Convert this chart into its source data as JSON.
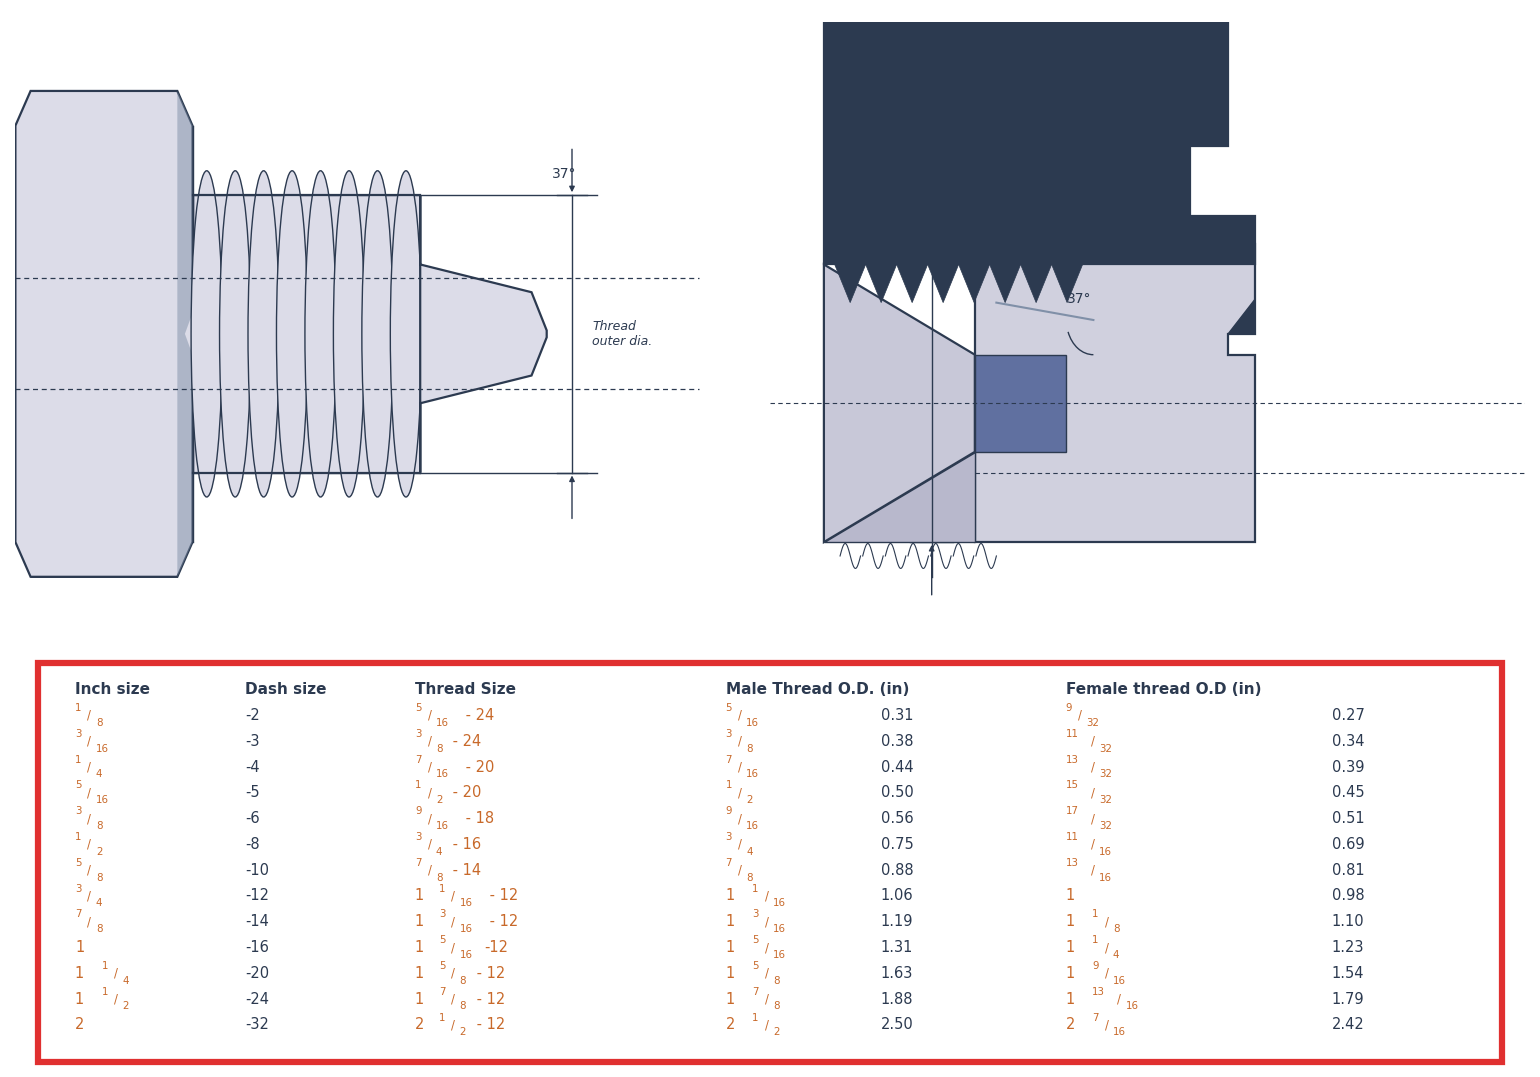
{
  "dash_size": [
    "-2",
    "-3",
    "-4",
    "-5",
    "-6",
    "-8",
    "-10",
    "-12",
    "-14",
    "-16",
    "-20",
    "-24",
    "-32"
  ],
  "male_dec": [
    "0.31",
    "0.38",
    "0.44",
    "0.50",
    "0.56",
    "0.75",
    "0.88",
    "1.06",
    "1.19",
    "1.31",
    "1.63",
    "1.88",
    "2.50"
  ],
  "female_dec": [
    "0.27",
    "0.34",
    "0.39",
    "0.45",
    "0.51",
    "0.69",
    "0.81",
    "0.98",
    "1.10",
    "1.23",
    "1.54",
    "1.79",
    "2.42"
  ],
  "header_color": "#2c3a50",
  "data_color": "#c8692a",
  "border_color": "#e03030",
  "bg_color": "#ffffff",
  "dark": "#2c3a50",
  "light_gray": "#dcdce8",
  "mid_gray": "#c8c8d8",
  "navy": "#2c3a50"
}
